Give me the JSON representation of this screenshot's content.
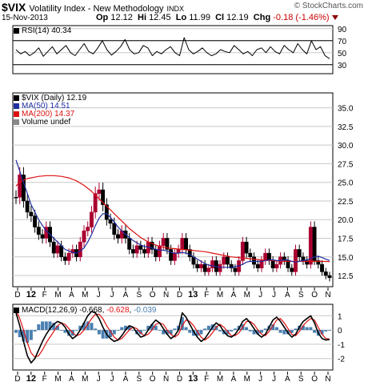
{
  "header": {
    "symbol": "$VIX",
    "name": "Volatility Index - New Methodology",
    "exchange": "INDX",
    "credit": "© StockCharts.com",
    "date": "15-Nov-2013",
    "open_label": "Op",
    "open": "12.12",
    "high_label": "Hi",
    "high": "12.45",
    "low_label": "Lo",
    "low": "11.99",
    "close_label": "Cl",
    "close": "12.19",
    "change_label": "Chg",
    "change": "-0.18 (-1.46%)"
  },
  "colors": {
    "price_up": "#000000",
    "price_down": "#aa0030",
    "ma50": "#1f2ea0",
    "ma200": "#dd1111",
    "macd": "#000000",
    "signal": "#dd1111",
    "hist": "#4a7fb0",
    "rsi": "#000000",
    "grid": "#c8c8c8"
  },
  "chart_data": [
    {
      "type": "line",
      "panel": "rsi",
      "legend": "RSI(14) 40.34",
      "y_ticks": [
        "90",
        "70",
        "50",
        "30"
      ],
      "ylim": [
        15,
        95
      ],
      "series": [
        {
          "name": "RSI(14)",
          "values": [
            55,
            48,
            52,
            45,
            50,
            58,
            44,
            52,
            60,
            48,
            55,
            62,
            50,
            45,
            55,
            65,
            52,
            48,
            58,
            70,
            55,
            46,
            52,
            60,
            72,
            55,
            48,
            50,
            62,
            58,
            45,
            52,
            48,
            55,
            60,
            50,
            45,
            75,
            55,
            48,
            52,
            58,
            50,
            45,
            48,
            55,
            52,
            50,
            62,
            55,
            48,
            52,
            45,
            55,
            58,
            50,
            60,
            52,
            48,
            62,
            55,
            50,
            65,
            55,
            48,
            70,
            55,
            60,
            45,
            40
          ]
        }
      ]
    },
    {
      "type": "candlestick",
      "panel": "price",
      "legend": [
        "$VIX (Daily) 12.19",
        "MA(50) 14.51",
        "MA(200) 14.37",
        "Volume undef"
      ],
      "y_ticks": [
        "35.0",
        "32.5",
        "30.0",
        "27.5",
        "25.0",
        "22.5",
        "20.0",
        "17.5",
        "15.0",
        "12.5"
      ],
      "ylim": [
        11.0,
        37.0
      ],
      "x_labels": [
        "D",
        "12",
        "F",
        "M",
        "A",
        "M",
        "J",
        "J",
        "A",
        "S",
        "O",
        "N",
        "D",
        "13",
        "F",
        "M",
        "A",
        "M",
        "J",
        "J",
        "A",
        "S",
        "O",
        "N"
      ],
      "close": [
        23.0,
        26.0,
        22.5,
        21.0,
        20.5,
        19.0,
        18.0,
        17.5,
        19.0,
        17.0,
        15.5,
        16.5,
        15.0,
        14.5,
        15.5,
        16.0,
        15.0,
        17.0,
        18.5,
        19.0,
        21.0,
        23.5,
        24.0,
        22.0,
        20.0,
        19.5,
        18.0,
        17.5,
        18.5,
        17.5,
        16.0,
        15.5,
        16.5,
        16.0,
        15.5,
        17.0,
        16.0,
        15.0,
        16.5,
        17.5,
        16.0,
        14.5,
        15.5,
        16.0,
        17.5,
        16.0,
        15.0,
        14.0,
        13.5,
        14.0,
        13.0,
        13.5,
        14.5,
        13.0,
        14.0,
        15.0,
        14.0,
        13.5,
        13.0,
        14.5,
        17.0,
        15.5,
        15.0,
        14.0,
        13.5,
        14.5,
        15.5,
        14.5,
        13.5,
        14.0,
        15.0,
        14.5,
        13.5,
        13.0,
        16.0,
        15.0,
        14.5,
        14.0,
        19.0,
        14.5,
        14.0,
        13.0,
        12.5,
        12.2
      ],
      "series": [
        {
          "name": "MA(50)",
          "values": [
            28.0,
            26.5,
            25.0,
            23.5,
            22.0,
            21.0,
            20.0,
            19.2,
            18.5,
            18.0,
            17.5,
            17.0,
            16.5,
            16.0,
            15.8,
            15.6,
            15.5,
            15.8,
            16.2,
            17.0,
            18.0,
            19.2,
            20.2,
            20.8,
            20.8,
            20.3,
            19.7,
            19.0,
            18.5,
            18.0,
            17.6,
            17.2,
            16.9,
            16.6,
            16.4,
            16.3,
            16.2,
            16.0,
            15.9,
            15.9,
            15.8,
            15.6,
            15.5,
            15.5,
            15.6,
            15.5,
            15.3,
            15.0,
            14.7,
            14.4,
            14.1,
            13.9,
            13.8,
            13.7,
            13.6,
            13.6,
            13.6,
            13.6,
            13.7,
            13.8,
            14.0,
            14.3,
            14.4,
            14.4,
            14.4,
            14.4,
            14.5,
            14.6,
            14.6,
            14.5,
            14.5,
            14.6,
            14.6,
            14.4,
            14.3,
            14.4,
            14.5,
            14.6,
            14.8,
            15.0,
            15.1,
            14.9,
            14.7,
            14.51
          ]
        },
        {
          "name": "MA(200)",
          "values": [
            24.5,
            25.0,
            25.3,
            25.5,
            25.6,
            25.7,
            25.8,
            25.85,
            25.9,
            25.9,
            25.9,
            25.85,
            25.8,
            25.7,
            25.6,
            25.4,
            25.2,
            24.9,
            24.6,
            24.2,
            23.8,
            23.3,
            22.8,
            22.3,
            21.8,
            21.3,
            20.8,
            20.3,
            19.8,
            19.3,
            18.8,
            18.4,
            18.0,
            17.6,
            17.3,
            17.0,
            16.8,
            16.6,
            16.4,
            16.3,
            16.2,
            16.15,
            16.1,
            16.05,
            16.0,
            15.95,
            15.9,
            15.85,
            15.8,
            15.75,
            15.7,
            15.6,
            15.5,
            15.4,
            15.3,
            15.2,
            15.1,
            15.0,
            14.95,
            14.9,
            14.85,
            14.8,
            14.75,
            14.7,
            14.65,
            14.6,
            14.55,
            14.5,
            14.5,
            14.45,
            14.45,
            14.4,
            14.4,
            14.4,
            14.4,
            14.4,
            14.4,
            14.4,
            14.4,
            14.4,
            14.4,
            14.4,
            14.38,
            14.37
          ]
        }
      ]
    },
    {
      "type": "line",
      "panel": "macd",
      "legend": {
        "prefix": "MACD(12,26,9)",
        "macd": "-0.668",
        "signal": "-0.628",
        "hist": "-0.039"
      },
      "y_ticks": [
        "1",
        "0",
        "-1",
        "-2"
      ],
      "ylim": [
        -2.8,
        1.8
      ],
      "x_labels": [
        "D",
        "12",
        "F",
        "M",
        "A",
        "M",
        "J",
        "J",
        "A",
        "S",
        "O",
        "N",
        "D",
        "13",
        "F",
        "M",
        "A",
        "M",
        "J",
        "J",
        "A",
        "S",
        "O",
        "N"
      ],
      "series": [
        {
          "name": "MACD",
          "values": [
            1.2,
            0.3,
            -0.8,
            -1.8,
            -2.3,
            -2.0,
            -1.4,
            -0.8,
            -0.3,
            0.1,
            0.4,
            0.6,
            0.5,
            0.2,
            -0.3,
            -0.6,
            -0.4,
            0.0,
            0.5,
            1.0,
            1.3,
            1.2,
            0.8,
            0.2,
            -0.3,
            -0.6,
            -0.8,
            -0.7,
            -0.4,
            0.0,
            0.3,
            0.2,
            -0.2,
            -0.5,
            -0.4,
            0.0,
            0.4,
            0.7,
            0.5,
            0.1,
            -0.3,
            -0.6,
            -0.4,
            0.0,
            1.2,
            0.9,
            0.4,
            -0.1,
            -0.5,
            -0.8,
            -0.6,
            -0.2,
            0.2,
            0.5,
            0.3,
            -0.1,
            -0.4,
            -0.5,
            -0.3,
            0.1,
            0.6,
            0.8,
            0.5,
            0.1,
            -0.3,
            -0.5,
            -0.3,
            0.2,
            0.7,
            0.9,
            0.6,
            0.2,
            -0.2,
            -0.5,
            -0.3,
            0.2,
            0.6,
            0.8,
            1.0,
            0.5,
            -0.2,
            -0.6,
            -0.7,
            -0.668
          ]
        },
        {
          "name": "Signal",
          "values": [
            1.4,
            0.8,
            0.0,
            -0.9,
            -1.6,
            -1.9,
            -1.8,
            -1.4,
            -0.9,
            -0.5,
            -0.1,
            0.3,
            0.5,
            0.4,
            0.1,
            -0.2,
            -0.4,
            -0.3,
            0.0,
            0.4,
            0.8,
            1.1,
            1.1,
            0.8,
            0.3,
            -0.1,
            -0.5,
            -0.7,
            -0.6,
            -0.3,
            0.0,
            0.2,
            0.1,
            -0.2,
            -0.4,
            -0.3,
            0.0,
            0.4,
            0.5,
            0.4,
            0.0,
            -0.3,
            -0.5,
            -0.3,
            0.3,
            0.7,
            0.6,
            0.3,
            -0.1,
            -0.5,
            -0.7,
            -0.5,
            -0.2,
            0.2,
            0.4,
            0.2,
            -0.1,
            -0.4,
            -0.4,
            -0.2,
            0.2,
            0.6,
            0.6,
            0.4,
            0.0,
            -0.3,
            -0.4,
            -0.1,
            0.3,
            0.7,
            0.8,
            0.5,
            0.1,
            -0.3,
            -0.4,
            -0.1,
            0.3,
            0.6,
            0.8,
            0.7,
            0.2,
            -0.3,
            -0.6,
            -0.628
          ]
        }
      ]
    }
  ]
}
